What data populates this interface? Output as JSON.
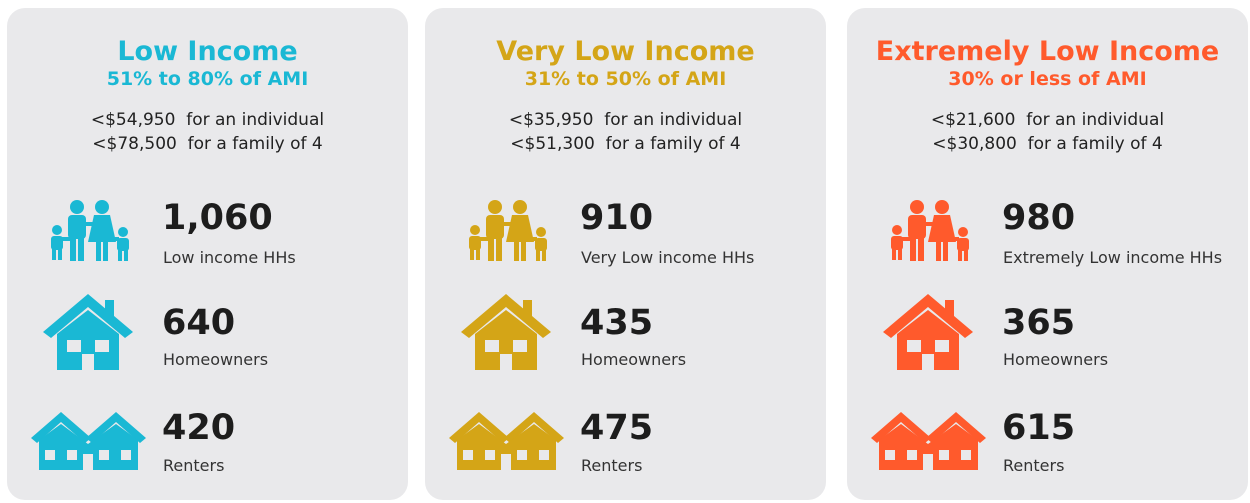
{
  "cards": [
    {
      "title": "Low Income",
      "subtitle": "51% to 80% of AMI",
      "color": "#1ab8d4",
      "income": [
        "<$54,950  for an individual",
        "<$78,500  for a family of 4"
      ],
      "stats": [
        {
          "value": "1,060",
          "label": "Low income HHs"
        },
        {
          "value": "640",
          "label": "Homeowners"
        },
        {
          "value": "420",
          "label": "Renters"
        }
      ]
    },
    {
      "title": "Very Low Income",
      "subtitle": "31% to 50% of AMI",
      "color": "#d4a517",
      "income": [
        "<$35,950  for an individual",
        "<$51,300  for a family of 4"
      ],
      "stats": [
        {
          "value": "910",
          "label": "Very Low income HHs"
        },
        {
          "value": "435",
          "label": "Homeowners"
        },
        {
          "value": "475",
          "label": "Renters"
        }
      ]
    },
    {
      "title": "Extremely Low Income",
      "subtitle": "30% or less of AMI",
      "color": "#ff5a2c",
      "income": [
        "<$21,600  for an individual",
        "<$30,800  for a family of 4"
      ],
      "stats": [
        {
          "value": "980",
          "label": "Extremely Low income HHs"
        },
        {
          "value": "365",
          "label": "Homeowners"
        },
        {
          "value": "615",
          "label": "Renters"
        }
      ]
    }
  ]
}
